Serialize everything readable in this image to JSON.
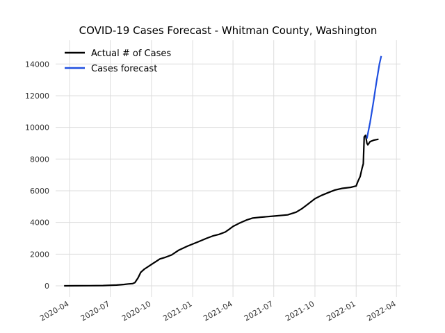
{
  "chart_data": {
    "type": "line",
    "title": "COVID-19 Cases Forecast - Whitman County, Washington",
    "xlabel": "",
    "ylabel": "",
    "ylim": [
      -700,
      15500
    ],
    "xlim": [
      "2020-03-01",
      "2022-04-10"
    ],
    "grid": true,
    "legend_position": "top-left",
    "y_ticks": [
      0,
      2000,
      4000,
      6000,
      8000,
      10000,
      12000,
      14000
    ],
    "y_tick_labels": [
      "0",
      "2000",
      "4000",
      "6000",
      "8000",
      "10000",
      "12000",
      "14000"
    ],
    "x_ticks": [
      "2020-04-01",
      "2020-07-01",
      "2020-10-01",
      "2021-01-01",
      "2021-04-01",
      "2021-07-01",
      "2021-10-01",
      "2022-01-01",
      "2022-04-01"
    ],
    "x_tick_labels": [
      "2020-04",
      "2020-07",
      "2020-10",
      "2021-01",
      "2021-04",
      "2021-07",
      "2021-10",
      "2022-01",
      "2022-04"
    ],
    "series": [
      {
        "name": "Actual # of Cases",
        "color": "#000000",
        "points": [
          [
            "2020-03-20",
            0
          ],
          [
            "2020-04-15",
            5
          ],
          [
            "2020-05-15",
            10
          ],
          [
            "2020-06-15",
            20
          ],
          [
            "2020-07-15",
            50
          ],
          [
            "2020-08-01",
            90
          ],
          [
            "2020-08-10",
            120
          ],
          [
            "2020-08-20",
            140
          ],
          [
            "2020-08-25",
            200
          ],
          [
            "2020-09-01",
            500
          ],
          [
            "2020-09-07",
            850
          ],
          [
            "2020-09-15",
            1050
          ],
          [
            "2020-10-01",
            1350
          ],
          [
            "2020-10-20",
            1700
          ],
          [
            "2020-11-01",
            1800
          ],
          [
            "2020-11-15",
            1950
          ],
          [
            "2020-12-01",
            2250
          ],
          [
            "2020-12-20",
            2500
          ],
          [
            "2021-01-15",
            2800
          ],
          [
            "2021-02-01",
            3000
          ],
          [
            "2021-02-15",
            3150
          ],
          [
            "2021-03-01",
            3250
          ],
          [
            "2021-03-15",
            3400
          ],
          [
            "2021-03-25",
            3600
          ],
          [
            "2021-04-01",
            3750
          ],
          [
            "2021-04-15",
            3950
          ],
          [
            "2021-05-01",
            4150
          ],
          [
            "2021-05-15",
            4280
          ],
          [
            "2021-06-01",
            4330
          ],
          [
            "2021-07-01",
            4400
          ],
          [
            "2021-08-01",
            4480
          ],
          [
            "2021-08-20",
            4650
          ],
          [
            "2021-09-01",
            4850
          ],
          [
            "2021-09-15",
            5150
          ],
          [
            "2021-10-01",
            5500
          ],
          [
            "2021-10-15",
            5700
          ],
          [
            "2021-11-01",
            5900
          ],
          [
            "2021-11-15",
            6050
          ],
          [
            "2021-12-01",
            6150
          ],
          [
            "2021-12-20",
            6220
          ],
          [
            "2022-01-01",
            6300
          ],
          [
            "2022-01-05",
            6600
          ],
          [
            "2022-01-10",
            6900
          ],
          [
            "2022-01-14",
            7400
          ],
          [
            "2022-01-17",
            7700
          ],
          [
            "2022-01-19",
            9400
          ],
          [
            "2022-01-22",
            9500
          ],
          [
            "2022-01-25",
            9000
          ],
          [
            "2022-01-27",
            8900
          ],
          [
            "2022-02-01",
            9100
          ],
          [
            "2022-02-10",
            9200
          ],
          [
            "2022-02-20",
            9250
          ]
        ]
      },
      {
        "name": "Cases forecast",
        "color": "#1f4fe0",
        "points": [
          [
            "2022-01-25",
            9300
          ],
          [
            "2022-02-01",
            10300
          ],
          [
            "2022-02-08",
            11500
          ],
          [
            "2022-02-15",
            12800
          ],
          [
            "2022-02-22",
            14000
          ],
          [
            "2022-02-26",
            14500
          ]
        ]
      }
    ]
  }
}
